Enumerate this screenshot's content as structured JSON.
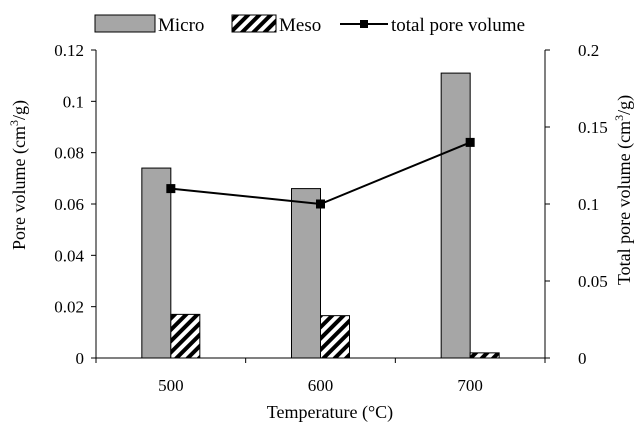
{
  "chart_data": {
    "type": "bar",
    "categories": [
      "500",
      "600",
      "700"
    ],
    "series": [
      {
        "name": "Micro",
        "type": "bar",
        "axis": "left",
        "values": [
          0.074,
          0.066,
          0.111
        ],
        "color": "#a6a6a6",
        "pattern": "solid"
      },
      {
        "name": "Meso",
        "type": "bar",
        "axis": "left",
        "values": [
          0.017,
          0.0165,
          0.002
        ],
        "color": "#000000",
        "pattern": "diagonal-hatch"
      },
      {
        "name": "total pore volume",
        "type": "line",
        "axis": "right",
        "values": [
          0.11,
          0.1,
          0.14
        ],
        "color": "#000000",
        "marker": "square"
      }
    ],
    "xlabel": "Temperature (°C)",
    "ylabel": {
      "main": "Pore volume (cm",
      "sup": "3",
      "tail": "/g)"
    },
    "y2label": {
      "main": "Total pore volume (cm",
      "sup": "3",
      "tail": "/g)"
    },
    "ylim": [
      0,
      0.12
    ],
    "y2lim": [
      0,
      0.2
    ],
    "yticks": [
      "0",
      "0.02",
      "0.04",
      "0.06",
      "0.08",
      "0.1",
      "0.12"
    ],
    "y2ticks": [
      "0",
      "0.05",
      "0.1",
      "0.15",
      "0.2"
    ],
    "grid": false,
    "legend_position": "top"
  }
}
